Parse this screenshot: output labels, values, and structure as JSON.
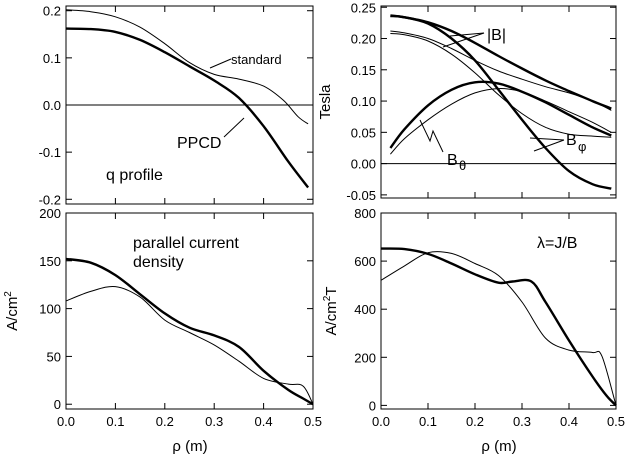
{
  "chart_data": [
    {
      "type": "line",
      "position": "top-left",
      "ylim": [
        -0.21,
        0.21
      ],
      "xlim": [
        0.0,
        0.5
      ],
      "yticks": [
        "0.2",
        "0.1",
        "0.0",
        "-0.1",
        "-0.2"
      ],
      "ytick_values": [
        0.2,
        0.1,
        0.0,
        -0.1,
        -0.2
      ],
      "xticks": [],
      "xtick_values": [],
      "xlabel": "",
      "ylabel": "",
      "zero_line": true,
      "annotations": {
        "title": "q profile",
        "standard": "standard",
        "ppcd": "PPCD"
      },
      "series": [
        {
          "name": "PPCD",
          "style": "thick",
          "x": [
            0,
            0.05,
            0.1,
            0.15,
            0.2,
            0.25,
            0.3,
            0.35,
            0.4,
            0.45,
            0.49
          ],
          "y": [
            0.162,
            0.161,
            0.155,
            0.138,
            0.112,
            0.082,
            0.052,
            0.015,
            -0.045,
            -0.12,
            -0.175
          ]
        },
        {
          "name": "standard",
          "style": "thin",
          "x": [
            0,
            0.05,
            0.1,
            0.15,
            0.2,
            0.25,
            0.3,
            0.35,
            0.4,
            0.44,
            0.47,
            0.49
          ],
          "y": [
            0.202,
            0.198,
            0.187,
            0.165,
            0.13,
            0.09,
            0.065,
            0.055,
            0.04,
            0.01,
            -0.025,
            -0.04
          ]
        }
      ]
    },
    {
      "type": "line",
      "position": "top-right",
      "ylim": [
        -0.055,
        0.252
      ],
      "xlim": [
        0.0,
        0.5
      ],
      "ylabel": "Tesla",
      "yticks": [
        "0.25",
        "0.20",
        "0.15",
        "0.10",
        "0.05",
        "0.00",
        "-0.05"
      ],
      "ytick_values": [
        0.25,
        0.2,
        0.15,
        0.1,
        0.05,
        0.0,
        -0.05
      ],
      "xticks": [],
      "xtick_values": [],
      "xlabel": "",
      "zero_line": true,
      "annotations": {
        "absB": "|B|",
        "Btheta": "B",
        "Btheta_sub": "θ",
        "Bphi": "B",
        "Bphi_sub": "φ"
      },
      "series": [
        {
          "name": "|B|",
          "style": "thick",
          "x": [
            0.02,
            0.05,
            0.1,
            0.15,
            0.2,
            0.25,
            0.3,
            0.35,
            0.4,
            0.45,
            0.49
          ],
          "y": [
            0.237,
            0.234,
            0.226,
            0.212,
            0.193,
            0.172,
            0.152,
            0.133,
            0.116,
            0.1,
            0.088
          ]
        },
        {
          "name": "|B|",
          "style": "thin",
          "x": [
            0.02,
            0.05,
            0.1,
            0.15,
            0.2,
            0.25,
            0.3,
            0.35,
            0.4,
            0.45,
            0.49
          ],
          "y": [
            0.212,
            0.209,
            0.2,
            0.184,
            0.165,
            0.148,
            0.135,
            0.123,
            0.113,
            0.1,
            0.085
          ]
        },
        {
          "name": "Bθ",
          "style": "thick",
          "x": [
            0.02,
            0.05,
            0.1,
            0.15,
            0.2,
            0.25,
            0.3,
            0.35,
            0.4,
            0.45,
            0.49
          ],
          "y": [
            0.025,
            0.055,
            0.093,
            0.118,
            0.13,
            0.128,
            0.115,
            0.098,
            0.078,
            0.058,
            0.045
          ]
        },
        {
          "name": "Bθ",
          "style": "thin",
          "x": [
            0.02,
            0.05,
            0.1,
            0.15,
            0.2,
            0.25,
            0.3,
            0.35,
            0.4,
            0.45,
            0.49
          ],
          "y": [
            0.015,
            0.04,
            0.07,
            0.095,
            0.113,
            0.12,
            0.115,
            0.1,
            0.083,
            0.066,
            0.05
          ]
        },
        {
          "name": "Bφ",
          "style": "thick",
          "x": [
            0.02,
            0.05,
            0.1,
            0.15,
            0.2,
            0.25,
            0.3,
            0.35,
            0.4,
            0.45,
            0.49
          ],
          "y": [
            0.236,
            0.234,
            0.224,
            0.2,
            0.165,
            0.118,
            0.07,
            0.025,
            -0.012,
            -0.033,
            -0.04
          ]
        },
        {
          "name": "Bφ",
          "style": "thin",
          "x": [
            0.02,
            0.05,
            0.1,
            0.15,
            0.2,
            0.25,
            0.3,
            0.35,
            0.4,
            0.45,
            0.49
          ],
          "y": [
            0.208,
            0.206,
            0.196,
            0.175,
            0.145,
            0.11,
            0.08,
            0.058,
            0.047,
            0.044,
            0.042
          ]
        }
      ]
    },
    {
      "type": "line",
      "position": "bottom-left",
      "ylim": [
        -5,
        200
      ],
      "xlim": [
        0.0,
        0.5
      ],
      "ylabel": "A/cm²",
      "ylabel_main": "A/cm",
      "ylabel_sup": "2",
      "yticks": [
        "200",
        "150",
        "100",
        "50",
        "0"
      ],
      "ytick_values": [
        200,
        150,
        100,
        50,
        0
      ],
      "xticks": [
        "0.0",
        "0.1",
        "0.2",
        "0.3",
        "0.4",
        "0.5"
      ],
      "xtick_values": [
        0.0,
        0.1,
        0.2,
        0.3,
        0.4,
        0.5
      ],
      "xlabel": "ρ (m)",
      "annotations": {
        "line1": "parallel current",
        "line2": "density"
      },
      "series": [
        {
          "name": "PPCD",
          "style": "thick",
          "x": [
            0,
            0.05,
            0.1,
            0.15,
            0.2,
            0.25,
            0.3,
            0.35,
            0.4,
            0.45,
            0.48,
            0.5
          ],
          "y": [
            152,
            148,
            135,
            115,
            95,
            80,
            72,
            60,
            35,
            15,
            6,
            0
          ]
        },
        {
          "name": "standard",
          "style": "thin",
          "x": [
            0,
            0.05,
            0.1,
            0.15,
            0.2,
            0.25,
            0.3,
            0.35,
            0.4,
            0.45,
            0.48,
            0.5
          ],
          "y": [
            108,
            118,
            123,
            112,
            88,
            75,
            62,
            45,
            27,
            21,
            19,
            0
          ]
        }
      ]
    },
    {
      "type": "line",
      "position": "bottom-right",
      "ylim": [
        -15,
        800
      ],
      "xlim": [
        0.0,
        0.5
      ],
      "ylabel": "A/cm²T",
      "ylabel_main": "A/cm",
      "ylabel_sup": "2",
      "ylabel_tail": "T",
      "yticks": [
        "800",
        "600",
        "400",
        "200",
        "0"
      ],
      "ytick_values": [
        800,
        600,
        400,
        200,
        0
      ],
      "xticks": [
        "0.0",
        "0.1",
        "0.2",
        "0.3",
        "0.4",
        "0.5"
      ],
      "xtick_values": [
        0.0,
        0.1,
        0.2,
        0.3,
        0.4,
        0.5
      ],
      "xlabel": "ρ (m)",
      "annotations": {
        "lambda": "λ=J/B"
      },
      "series": [
        {
          "name": "PPCD",
          "style": "thick",
          "x": [
            0,
            0.05,
            0.1,
            0.15,
            0.2,
            0.25,
            0.28,
            0.32,
            0.35,
            0.4,
            0.45,
            0.48,
            0.5
          ],
          "y": [
            652,
            650,
            630,
            590,
            545,
            510,
            515,
            515,
            430,
            270,
            120,
            40,
            0
          ]
        },
        {
          "name": "standard",
          "style": "thin",
          "x": [
            0,
            0.05,
            0.1,
            0.15,
            0.2,
            0.25,
            0.3,
            0.35,
            0.4,
            0.45,
            0.47,
            0.5
          ],
          "y": [
            520,
            580,
            635,
            632,
            590,
            540,
            430,
            280,
            230,
            220,
            205,
            0
          ]
        }
      ]
    }
  ]
}
